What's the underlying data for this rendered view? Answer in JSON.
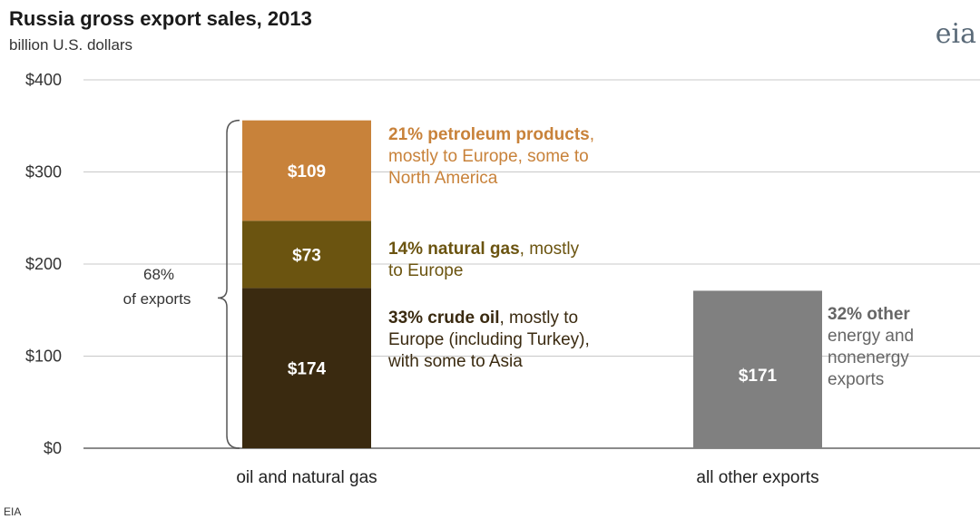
{
  "chart_data": {
    "type": "bar",
    "title": "Russia gross export sales, 2013",
    "subtitle": "billion U.S. dollars",
    "ylim": [
      0,
      400
    ],
    "yticks": [
      0,
      100,
      200,
      300,
      400
    ],
    "ytick_labels": [
      "$0",
      "$100",
      "$200",
      "$300",
      "$400"
    ],
    "categories": [
      "oil and natural gas",
      "all other exports"
    ],
    "series": [
      {
        "name": "crude oil",
        "values": [
          174,
          0
        ],
        "color": "#3a2a10",
        "value_labels": [
          "$174",
          ""
        ],
        "annotation": {
          "bold": "33% crude oil",
          "rest": ", mostly to",
          "lines": [
            "Europe (including Turkey),",
            "with some to Asia"
          ],
          "color": "#3a2a10"
        }
      },
      {
        "name": "natural gas",
        "values": [
          73,
          0
        ],
        "color": "#6b5410",
        "value_labels": [
          "$73",
          ""
        ],
        "annotation": {
          "bold": "14% natural gas",
          "rest": ", mostly",
          "lines": [
            "to Europe"
          ],
          "color": "#6b5410"
        }
      },
      {
        "name": "petroleum products",
        "values": [
          109,
          0
        ],
        "color": "#c8823a",
        "value_labels": [
          "$109",
          ""
        ],
        "annotation": {
          "bold": "21% petroleum products",
          "rest": ",",
          "lines": [
            "mostly to Europe, some to",
            "North America"
          ],
          "color": "#c8823a"
        }
      },
      {
        "name": "other",
        "values": [
          0,
          171
        ],
        "color": "#808080",
        "value_labels": [
          "",
          "$171"
        ],
        "annotation": {
          "bold": "32% other",
          "rest": "",
          "lines": [
            "energy and",
            "nonenergy",
            "exports"
          ],
          "color": "#666666"
        }
      }
    ],
    "bracket": {
      "line1": "68%",
      "line2": "of exports"
    },
    "grid": true,
    "source": "EIA",
    "logo": "eia"
  }
}
